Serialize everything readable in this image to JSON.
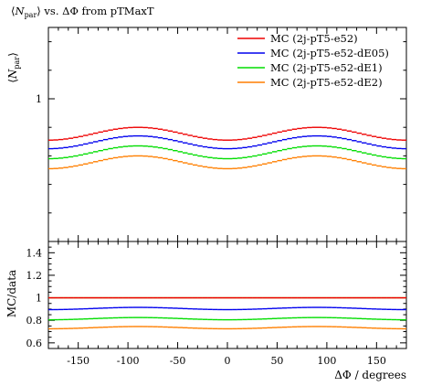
{
  "chart_data": {
    "type": "line",
    "title": "⟨N_par⟩ vs. ΔΦ from pTMaxT",
    "title_parts": {
      "pre": "⟨",
      "sym": "N",
      "sub": "par",
      "post": "⟩ vs. ΔΦ from pTMaxT"
    },
    "xlabel": "ΔΦ / degrees",
    "ylabel_main": "⟨N_par⟩",
    "ylabel_main_parts": {
      "sym": "N",
      "sub": "par"
    },
    "ylabel_ratio": "MC/data",
    "xlim": [
      -180,
      180
    ],
    "ylim_main": [
      0.5,
      1.25
    ],
    "ylim_ratio": [
      0.55,
      1.5
    ],
    "x_ticks": [
      -150,
      -100,
      -50,
      0,
      50,
      100,
      150
    ],
    "x_tick_labels": [
      "-150",
      "-100",
      "-50",
      "0",
      "50",
      "100",
      "150"
    ],
    "y_ticks_main": [
      1
    ],
    "y_tick_labels_main": [
      "1"
    ],
    "y_ticks_ratio": [
      0.6,
      0.8,
      1.0,
      1.2,
      1.4
    ],
    "y_tick_labels_ratio": [
      "0.6",
      "0.8",
      "1",
      "1.2",
      "1.4"
    ],
    "legend_position": "top-right",
    "x": [
      -177.5,
      -172.5,
      -167.5,
      -162.5,
      -157.5,
      -152.5,
      -147.5,
      -142.5,
      -137.5,
      -132.5,
      -127.5,
      -122.5,
      -117.5,
      -112.5,
      -107.5,
      -102.5,
      -97.5,
      -92.5,
      -87.5,
      -82.5,
      -77.5,
      -72.5,
      -67.5,
      -62.5,
      -57.5,
      -52.5,
      -47.5,
      -42.5,
      -37.5,
      -32.5,
      -27.5,
      -22.5,
      -17.5,
      -12.5,
      -7.5,
      -2.5,
      2.5,
      7.5,
      12.5,
      17.5,
      22.5,
      27.5,
      32.5,
      37.5,
      42.5,
      47.5,
      52.5,
      57.5,
      62.5,
      67.5,
      72.5,
      77.5,
      82.5,
      87.5,
      92.5,
      97.5,
      102.5,
      107.5,
      112.5,
      117.5,
      122.5,
      127.5,
      132.5,
      137.5,
      142.5,
      147.5,
      152.5,
      157.5,
      162.5,
      167.5,
      172.5,
      177.5
    ],
    "shape": {
      "base": 0.855,
      "amplitude": 0.045
    },
    "series": [
      {
        "name": "MC (2j-pT5-e52)",
        "color": "#ee0000",
        "offset": 0.0,
        "ratio_base": 1.0
      },
      {
        "name": "MC (2j-pT5-e52-dE05)",
        "color": "#0000ee",
        "offset": -0.03,
        "ratio_base": 0.905
      },
      {
        "name": "MC (2j-pT5-e52-dE1)",
        "color": "#00dd00",
        "offset": -0.065,
        "ratio_base": 0.815
      },
      {
        "name": "MC (2j-pT5-e52-dE2)",
        "color": "#ff7f00",
        "offset": -0.1,
        "ratio_base": 0.735
      }
    ],
    "reference_line": {
      "value": 1.0,
      "color": "#b5a642"
    }
  }
}
